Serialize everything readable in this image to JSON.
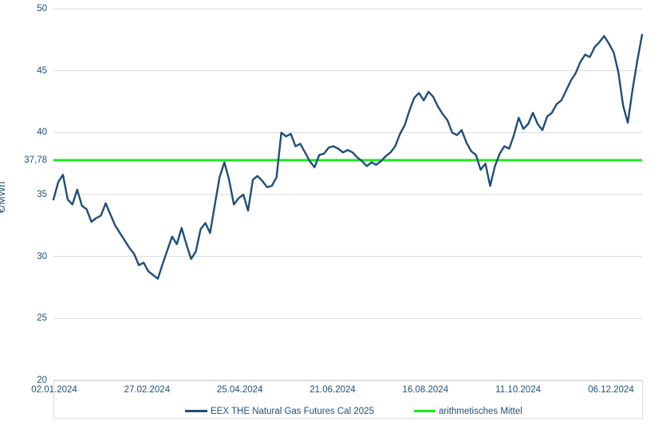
{
  "chart_data": {
    "type": "line",
    "title": "",
    "xlabel": "",
    "ylabel": "€/MWh",
    "ylim": [
      20,
      50
    ],
    "yticks": [
      20,
      25,
      30,
      35,
      40,
      45,
      50
    ],
    "x_tick_labels": [
      "02.01.2024",
      "27.02.2024",
      "25.04.2024",
      "21.06.2024",
      "16.08.2024",
      "11.10.2024",
      "06.12.2024"
    ],
    "grid": true,
    "legend_position": "bottom",
    "mean_label": "37,78",
    "mean_value": 37.78,
    "series": [
      {
        "name": "EEX THE Natural Gas Futures Cal 2025",
        "color": "#1F4E79",
        "values": [
          34.6,
          36.0,
          36.6,
          34.6,
          34.2,
          35.4,
          34.1,
          33.8,
          32.8,
          33.1,
          33.3,
          34.3,
          33.4,
          32.5,
          31.9,
          31.3,
          30.7,
          30.2,
          29.3,
          29.5,
          28.8,
          28.5,
          28.2,
          29.4,
          30.5,
          31.6,
          31.0,
          32.3,
          31.0,
          29.8,
          30.4,
          32.2,
          32.7,
          31.9,
          34.2,
          36.4,
          37.6,
          36.2,
          34.2,
          34.7,
          35.0,
          33.7,
          36.2,
          36.5,
          36.1,
          35.6,
          35.7,
          36.4,
          40.0,
          39.7,
          39.9,
          38.9,
          39.1,
          38.4,
          37.7,
          37.2,
          38.2,
          38.3,
          38.8,
          38.9,
          38.7,
          38.4,
          38.6,
          38.4,
          38.0,
          37.7,
          37.3,
          37.6,
          37.4,
          37.7,
          38.1,
          38.4,
          38.9,
          39.9,
          40.6,
          41.8,
          42.8,
          43.2,
          42.6,
          43.3,
          42.9,
          42.1,
          41.5,
          41.0,
          40.0,
          39.8,
          40.2,
          39.2,
          38.5,
          38.2,
          37.0,
          37.5,
          35.7,
          37.3,
          38.3,
          38.9,
          38.7,
          39.8,
          41.2,
          40.3,
          40.7,
          41.6,
          40.7,
          40.2,
          41.3,
          41.6,
          42.3,
          42.6,
          43.4,
          44.2,
          44.8,
          45.7,
          46.3,
          46.1,
          46.9,
          47.3,
          47.8,
          47.2,
          46.5,
          44.9,
          42.2,
          40.8,
          43.5,
          45.8,
          47.9
        ]
      },
      {
        "name": "arithmetisches Mittel",
        "color": "#1FE81F",
        "constant_value": 37.78
      }
    ],
    "colors": {
      "axis_text": "#1F4E79",
      "gridline": "#D9D9D9",
      "axis_line": "#BFBFBF",
      "background": "#FFFFFF"
    }
  }
}
